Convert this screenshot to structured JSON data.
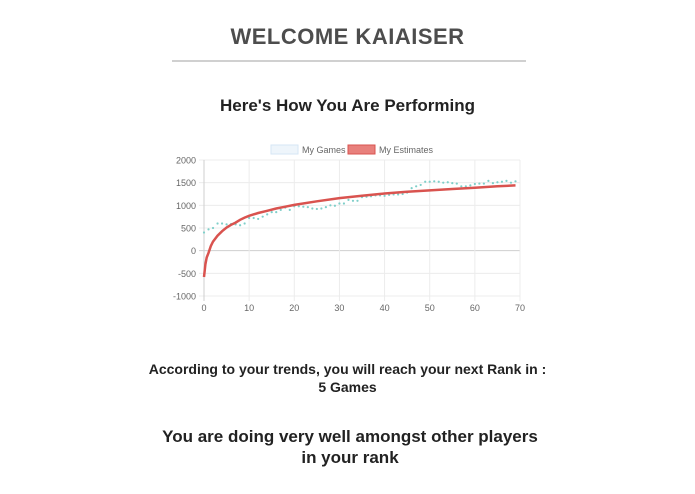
{
  "header": {
    "title": "WELCOME KAIAISER"
  },
  "performance": {
    "heading": "Here's How You Are Performing"
  },
  "trend": {
    "text": "According to your trends, you will reach your next Rank in :",
    "value": "5 Games"
  },
  "standing": {
    "text": "You are doing very well amongst other players in your rank"
  },
  "chart_data": {
    "type": "line",
    "xlim": [
      0,
      70
    ],
    "ylim": [
      -1000,
      2000
    ],
    "xticks": [
      0,
      10,
      20,
      30,
      40,
      50,
      60,
      70
    ],
    "yticks": [
      -1000,
      -500,
      0,
      500,
      1000,
      1500,
      2000
    ],
    "grid": true,
    "legend_position": "top",
    "series": [
      {
        "name": "My Games",
        "style": "dotted",
        "color": "#7fcfc9",
        "legend_fill": "#eef5fb",
        "legend_stroke": "#d6e6f5",
        "x": [
          0,
          1,
          2,
          3,
          4,
          5,
          6,
          7,
          8,
          9,
          10,
          11,
          12,
          13,
          14,
          15,
          16,
          17,
          18,
          19,
          20,
          21,
          22,
          23,
          24,
          25,
          26,
          27,
          28,
          29,
          30,
          31,
          32,
          33,
          34,
          35,
          36,
          37,
          38,
          39,
          40,
          41,
          42,
          43,
          44,
          45,
          46,
          47,
          48,
          49,
          50,
          51,
          52,
          53,
          54,
          55,
          56,
          57,
          58,
          59,
          60,
          61,
          62,
          63,
          64,
          65,
          66,
          67,
          68,
          69
        ],
        "y": [
          400,
          470,
          500,
          600,
          600,
          580,
          590,
          580,
          560,
          600,
          720,
          720,
          700,
          750,
          800,
          850,
          850,
          900,
          950,
          900,
          980,
          980,
          970,
          960,
          930,
          920,
          930,
          960,
          1000,
          990,
          1040,
          1040,
          1120,
          1100,
          1100,
          1180,
          1190,
          1200,
          1220,
          1220,
          1210,
          1230,
          1240,
          1240,
          1250,
          1280,
          1380,
          1420,
          1450,
          1520,
          1520,
          1530,
          1520,
          1500,
          1510,
          1490,
          1480,
          1420,
          1420,
          1440,
          1470,
          1480,
          1480,
          1540,
          1490,
          1510,
          1520,
          1540,
          1500,
          1530
        ]
      },
      {
        "name": "My Estimates",
        "style": "solid",
        "color": "#d9534f",
        "legend_fill": "#e8807c",
        "x": [
          0,
          0.3,
          0.6,
          1,
          1.5,
          2,
          3,
          4,
          5,
          6,
          7,
          8,
          9,
          10,
          12,
          14,
          16,
          18,
          20,
          25,
          30,
          35,
          40,
          45,
          50,
          55,
          60,
          65,
          69
        ],
        "y": [
          -580,
          -300,
          -150,
          -50,
          100,
          200,
          330,
          430,
          510,
          570,
          620,
          680,
          730,
          770,
          830,
          880,
          930,
          970,
          1010,
          1090,
          1160,
          1210,
          1260,
          1300,
          1330,
          1360,
          1390,
          1420,
          1440
        ]
      }
    ]
  }
}
